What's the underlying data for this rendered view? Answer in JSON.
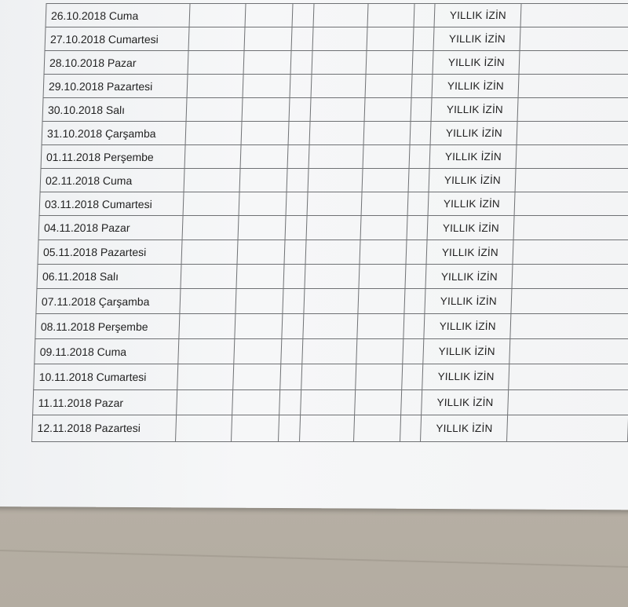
{
  "table": {
    "rows": [
      {
        "date": "26.10.2018 Cuma",
        "status": "YILLIK İZİN"
      },
      {
        "date": "27.10.2018 Cumartesi",
        "status": "YILLIK İZİN"
      },
      {
        "date": "28.10.2018 Pazar",
        "status": "YILLIK İZİN"
      },
      {
        "date": "29.10.2018 Pazartesi",
        "status": "YILLIK İZİN"
      },
      {
        "date": "30.10.2018 Salı",
        "status": "YILLIK İZİN"
      },
      {
        "date": "31.10.2018 Çarşamba",
        "status": "YILLIK İZİN"
      },
      {
        "date": "01.11.2018 Perşembe",
        "status": "YILLIK İZİN"
      },
      {
        "date": "02.11.2018 Cuma",
        "status": "YILLIK İZİN"
      },
      {
        "date": "03.11.2018 Cumartesi",
        "status": "YILLIK İZİN"
      },
      {
        "date": "04.11.2018 Pazar",
        "status": "YILLIK İZİN"
      },
      {
        "date": "05.11.2018 Pazartesi",
        "status": "YILLIK İZİN"
      },
      {
        "date": "06.11.2018 Salı",
        "status": "YILLIK İZİN"
      },
      {
        "date": "07.11.2018 Çarşamba",
        "status": "YILLIK İZİN"
      },
      {
        "date": "08.11.2018 Perşembe",
        "status": "YILLIK İZİN"
      },
      {
        "date": "09.11.2018 Cuma",
        "status": "YILLIK İZİN"
      },
      {
        "date": "10.11.2018 Cumartesi",
        "status": "YILLIK İZİN"
      },
      {
        "date": "11.11.2018 Pazar",
        "status": "YILLIK İZİN"
      },
      {
        "date": "12.11.2018 Pazartesi",
        "status": "YILLIK İZİN"
      }
    ]
  }
}
